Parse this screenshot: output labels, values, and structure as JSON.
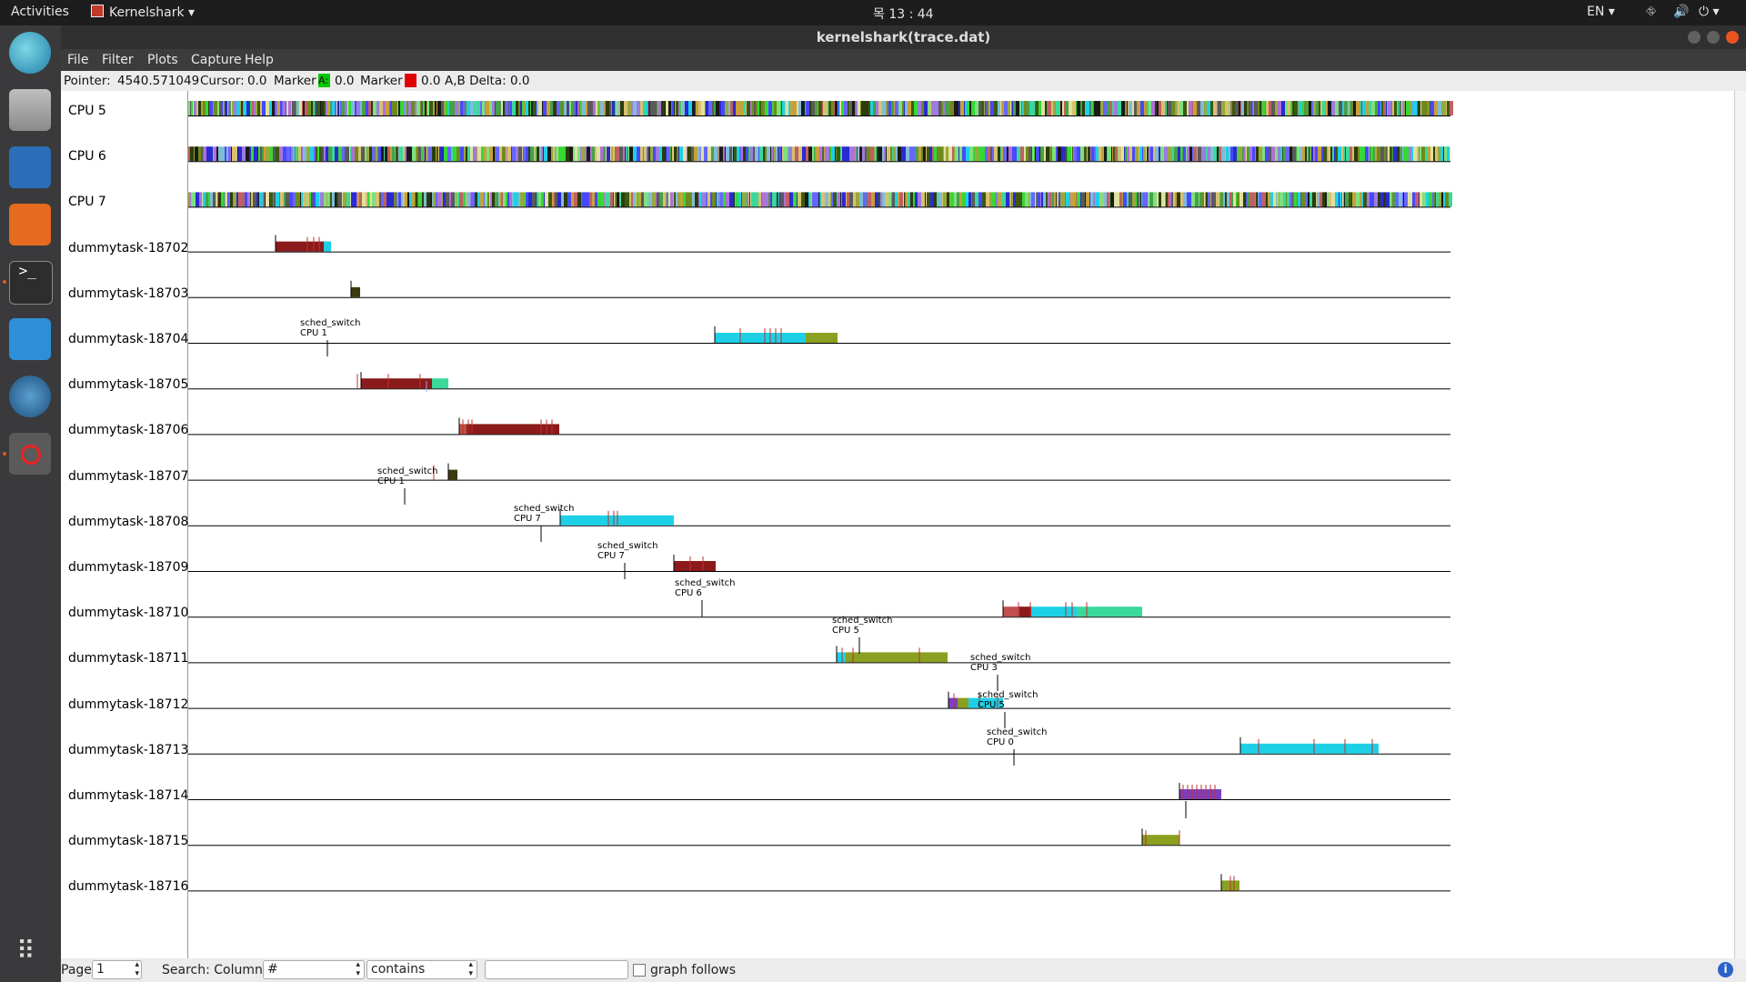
{
  "topbar": {
    "activities": "Activities",
    "app_name": "Kernelshark",
    "clock": "목 13 : 44",
    "lang": "EN"
  },
  "window": {
    "title": "kernelshark(trace.dat)"
  },
  "menu": [
    "File",
    "Filter",
    "Plots",
    "Capture",
    "Help"
  ],
  "info": {
    "pointer_label": "Pointer:",
    "pointer_value": "4540.571049",
    "cursor_label": "Cursor:",
    "cursor_value": "0.0",
    "marker_a_label": "Marker",
    "marker_a_letter": "A:",
    "marker_a_value": "0.0",
    "marker_b_label": "Marker",
    "marker_b_letter": "B",
    "marker_b_value": "0.0",
    "delta_label": "A,B Delta:",
    "delta_value": "0.0",
    "marker_a_color": "#00c800",
    "marker_b_color": "#e00000"
  },
  "rows": [
    "CPU 5",
    "CPU 6",
    "CPU 7",
    "dummytask-18702",
    "dummytask-18703",
    "dummytask-18704",
    "dummytask-18705",
    "dummytask-18706",
    "dummytask-18707",
    "dummytask-18708",
    "dummytask-18709",
    "dummytask-18710",
    "dummytask-18711",
    "dummytask-18712",
    "dummytask-18713",
    "dummytask-18714",
    "dummytask-18715",
    "dummytask-18716"
  ],
  "annotations": [
    {
      "event": "sched_switch",
      "cpu": "CPU 1"
    },
    {
      "event": "sched_switch",
      "cpu": "CPU 1"
    },
    {
      "event": "sched_switch",
      "cpu": "CPU 7"
    },
    {
      "event": "sched_switch",
      "cpu": "CPU 7"
    },
    {
      "event": "sched_switch",
      "cpu": "CPU 6"
    },
    {
      "event": "sched_switch",
      "cpu": "CPU 5"
    },
    {
      "event": "sched_switch",
      "cpu": "CPU 3"
    },
    {
      "event": "sched_switch",
      "cpu": "CPU 5"
    },
    {
      "event": "sched_switch",
      "cpu": "CPU 0"
    }
  ],
  "bottom": {
    "page_label": "Page",
    "page_value": "1",
    "search_label": "Search: Column:",
    "column_value": "#",
    "match_value": "contains",
    "search_text": "",
    "graph_follows": "graph follows"
  },
  "colors": {
    "dark_red": "#8b1a1a",
    "cyan": "#1ed0e6",
    "green": "#3ad89a",
    "olive": "#8aa020"
  }
}
